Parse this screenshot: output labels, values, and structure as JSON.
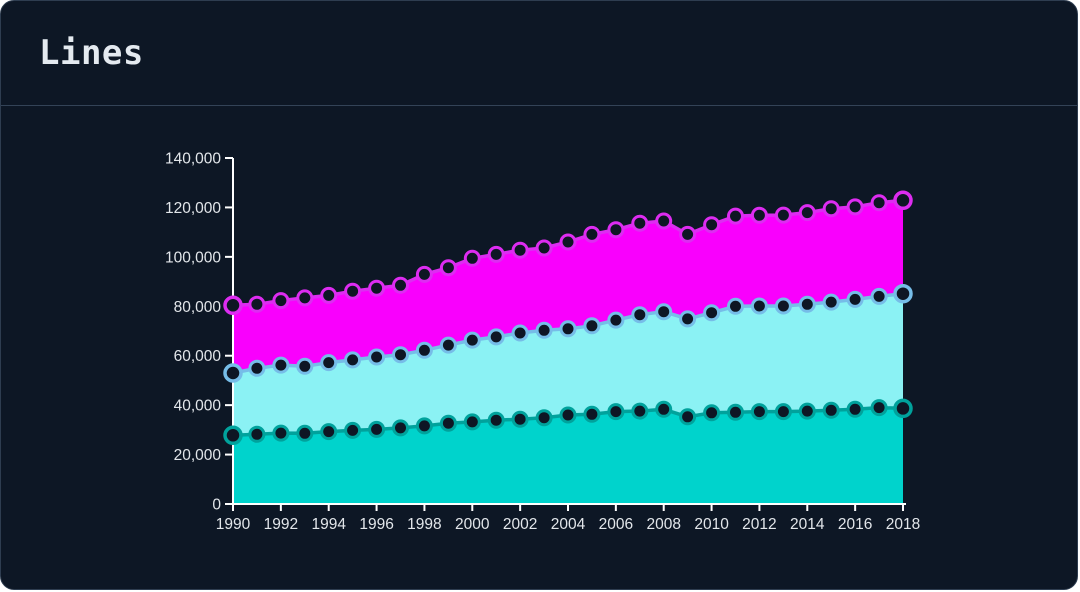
{
  "title": "Lines",
  "colors": {
    "card_background": "#0d1725",
    "card_border": "#2e3d50",
    "header_divider": "#334357",
    "title_text": "#e4eaf0",
    "axis": "#ffffff",
    "tick_label": "#e2e6ea",
    "marker_fill": "#0e1624"
  },
  "chart_data": {
    "type": "area",
    "title": "Lines",
    "xlabel": "",
    "ylabel": "",
    "grid": false,
    "legend": false,
    "x_range": [
      1990,
      2018
    ],
    "ylim": [
      0,
      140000
    ],
    "x": [
      1990,
      1991,
      1992,
      1993,
      1994,
      1995,
      1996,
      1997,
      1998,
      1999,
      2000,
      2001,
      2002,
      2003,
      2004,
      2005,
      2006,
      2007,
      2008,
      2009,
      2010,
      2011,
      2012,
      2013,
      2014,
      2015,
      2016,
      2017,
      2018
    ],
    "x_ticks": [
      1990,
      1992,
      1994,
      1996,
      1998,
      2000,
      2002,
      2004,
      2006,
      2008,
      2010,
      2012,
      2014,
      2016,
      2018
    ],
    "x_tick_labels": [
      "1990",
      "1992",
      "1994",
      "1996",
      "1998",
      "2000",
      "2002",
      "2004",
      "2006",
      "2008",
      "2010",
      "2012",
      "2014",
      "2016",
      "2018"
    ],
    "y_ticks": [
      0,
      20000,
      40000,
      60000,
      80000,
      100000,
      120000,
      140000
    ],
    "y_tick_labels": [
      "0",
      "20,000",
      "40,000",
      "60,000",
      "80,000",
      "100,000",
      "120,000",
      "140,000"
    ],
    "series": [
      {
        "name": "magenta-area",
        "fill": "#f900fd",
        "stroke": "#dd2cf1",
        "values": [
          80400,
          80800,
          82300,
          83400,
          84400,
          86100,
          87300,
          88500,
          92900,
          95600,
          99400,
          101000,
          102700,
          103600,
          106000,
          109100,
          111000,
          113600,
          114500,
          109100,
          113000,
          116500,
          116800,
          116900,
          117900,
          119500,
          120200,
          121900,
          122900
        ]
      },
      {
        "name": "cyan-area",
        "fill": "#8bf2f4",
        "stroke": "#76bde8",
        "values": [
          53000,
          54900,
          56200,
          55700,
          57200,
          58300,
          59500,
          60400,
          62200,
          64300,
          66300,
          67600,
          69200,
          70300,
          70900,
          72100,
          74400,
          76600,
          77800,
          74900,
          77400,
          80000,
          80100,
          80100,
          80800,
          81700,
          82800,
          84000,
          85100
        ]
      },
      {
        "name": "teal-area",
        "fill": "#00d3cc",
        "stroke": "#00a29c",
        "values": [
          27800,
          28200,
          28700,
          28600,
          29300,
          29800,
          30200,
          30800,
          31600,
          32700,
          33200,
          33900,
          34300,
          34900,
          36000,
          36300,
          37400,
          37600,
          38300,
          35300,
          36900,
          37100,
          37400,
          37400,
          37600,
          37900,
          38300,
          39000,
          38700
        ]
      }
    ],
    "marker": {
      "fill": "#0e1624",
      "radius": 7,
      "ring_width": 3,
      "end_radius": 8,
      "end_ring_width": 3.5
    }
  }
}
